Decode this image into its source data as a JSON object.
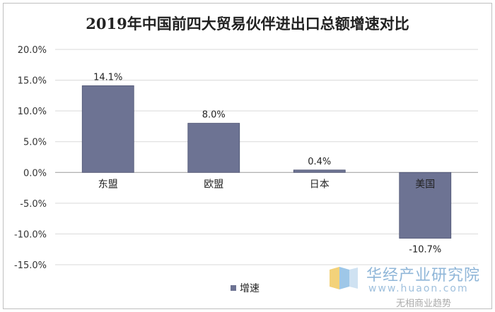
{
  "chart_data": {
    "type": "bar",
    "title": "2019年中国前四大贸易伙伴进出口总额增速对比",
    "categories": [
      "东盟",
      "欧盟",
      "日本",
      "美国"
    ],
    "series": [
      {
        "name": "增速",
        "values": [
          14.1,
          8.0,
          0.4,
          -10.7
        ],
        "labels": [
          "14.1%",
          "8.0%",
          "0.4%",
          "-10.7%"
        ],
        "color": "#6d7393"
      }
    ],
    "ylim": [
      -15,
      20
    ],
    "yticks": [
      20,
      15,
      10,
      5,
      0,
      -5,
      -10,
      -15
    ],
    "ytick_labels": [
      "20.0%",
      "15.0%",
      "10.0%",
      "5.0%",
      "0.0%",
      "-5.0%",
      "-10.0%",
      "-15.0%"
    ],
    "grid": true,
    "legend": "bottom-left"
  },
  "watermark": {
    "brand_cn": "华经产业研究院",
    "url": "www.huaon.com",
    "bottom_text": "无相商业趋势"
  }
}
